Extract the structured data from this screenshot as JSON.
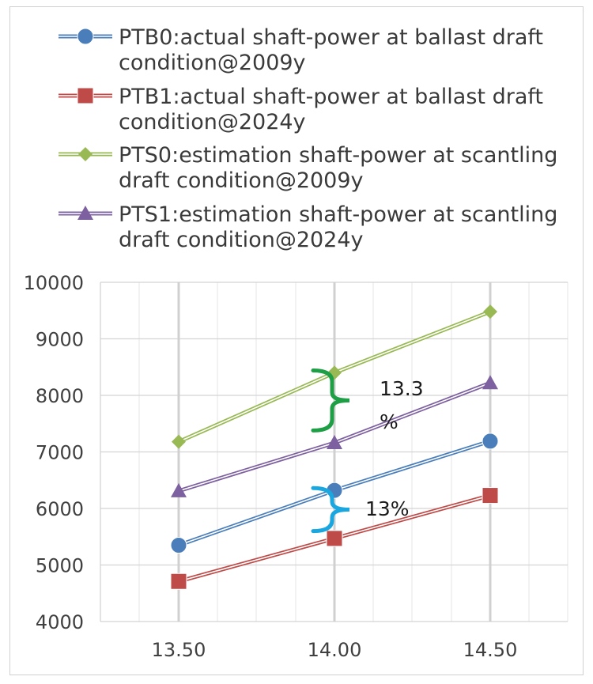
{
  "chart_data": {
    "type": "line",
    "title": "",
    "xlabel": "",
    "ylabel": "",
    "x": [
      13.5,
      14.0,
      14.5
    ],
    "x_tick_labels": [
      "13.50",
      "14.00",
      "14.50"
    ],
    "ylim": [
      4000,
      10000
    ],
    "y_ticks": [
      4000,
      5000,
      6000,
      7000,
      8000,
      9000,
      10000
    ],
    "y_tick_labels": [
      "4000",
      "5000",
      "6000",
      "7000",
      "8000",
      "9000",
      "10000"
    ],
    "grid": true,
    "legend_position": "top",
    "series": [
      {
        "name": "PTB0:actual shaft-power at ballast draft condition@2009y",
        "legend_lines": [
          "PTB0:actual shaft-power at ballast draft",
          "condition@2009y"
        ],
        "marker": "circle",
        "color": "#4a7ebb",
        "values": [
          5350,
          6320,
          7190
        ]
      },
      {
        "name": "PTB1:actual shaft-power at ballast draft condition@2024y",
        "legend_lines": [
          "PTB1:actual shaft-power at ballast draft",
          "condition@2024y"
        ],
        "marker": "square",
        "color": "#be4b48",
        "values": [
          4710,
          5470,
          6230
        ]
      },
      {
        "name": "PTS0:estimation shaft-power at scantling draft condition@2009y",
        "legend_lines": [
          "PTS0:estimation shaft-power at scantling",
          "draft condition@2009y"
        ],
        "marker": "diamond",
        "color": "#98b954",
        "values": [
          7180,
          8400,
          9480
        ]
      },
      {
        "name": "PTS1:estimation shaft-power at scantling draft condition@2024y",
        "legend_lines": [
          "PTS1:estimation shaft-power at scantling",
          "draft condition@2024y"
        ],
        "marker": "triangle",
        "color": "#7d60a0",
        "values": [
          6310,
          7160,
          8220
        ]
      }
    ],
    "annotations": [
      {
        "text_lines": [
          "13.3",
          "%"
        ],
        "color": "#1e9e45",
        "x": 14.0,
        "y_range": [
          7380,
          8440
        ]
      },
      {
        "text_lines": [
          "13%"
        ],
        "color": "#1aa7e0",
        "x": 14.0,
        "y_range": [
          5600,
          6360
        ]
      }
    ]
  }
}
